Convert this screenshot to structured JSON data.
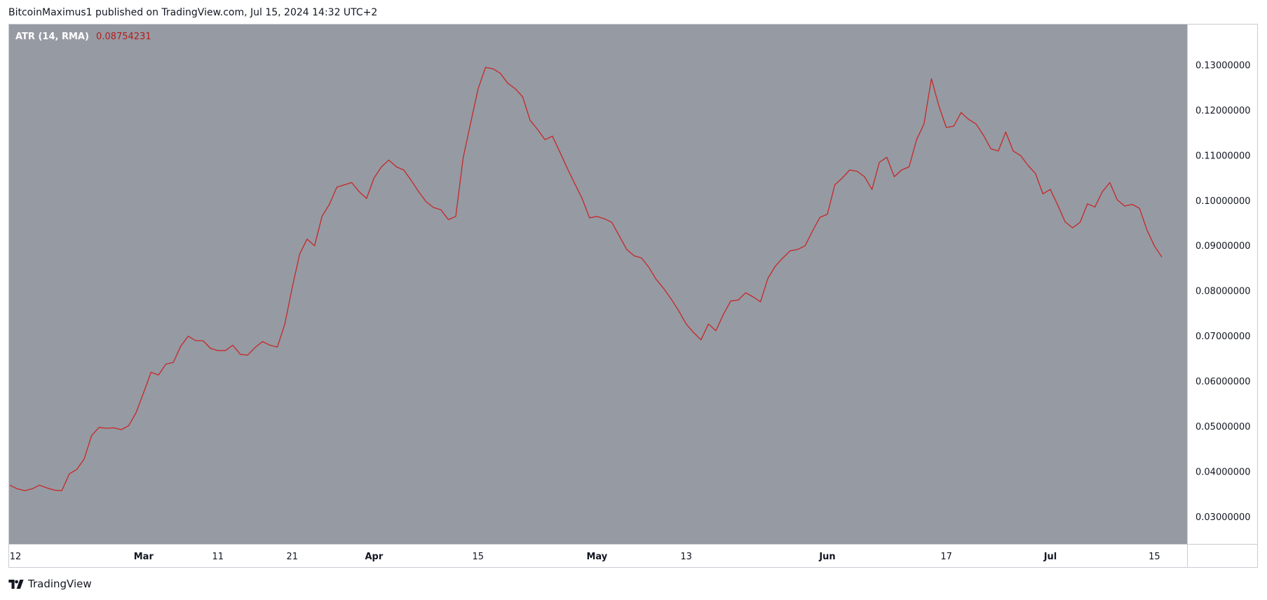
{
  "header": {
    "text": "BitcoinMaximus1 published on TradingView.com, Jul 15, 2024 14:32 UTC+2"
  },
  "legend": {
    "indicator": "ATR (14, RMA)",
    "value": "0.08754231"
  },
  "footer": {
    "brand": "TradingView",
    "logo_icon": "tradingview-logo-icon"
  },
  "colors": {
    "plot_bg": "#969aa3",
    "line": "#c62828",
    "value_text": "#b21d1d"
  },
  "chart_data": {
    "type": "line",
    "title": "",
    "xlabel": "",
    "ylabel": "",
    "ylim": [
      0.024,
      0.139
    ],
    "grid": false,
    "y_ticks": [
      "0.13000000",
      "0.12000000",
      "0.11000000",
      "0.10000000",
      "0.09000000",
      "0.08000000",
      "0.07000000",
      "0.06000000",
      "0.05000000",
      "0.04000000",
      "0.03000000"
    ],
    "x_ticks": [
      {
        "label": "12",
        "index": 0,
        "month": false
      },
      {
        "label": "Mar",
        "index": 18,
        "month": true
      },
      {
        "label": "11",
        "index": 28,
        "month": false
      },
      {
        "label": "21",
        "index": 38,
        "month": false
      },
      {
        "label": "Apr",
        "index": 49,
        "month": true
      },
      {
        "label": "15",
        "index": 63,
        "month": false
      },
      {
        "label": "May",
        "index": 79,
        "month": true
      },
      {
        "label": "13",
        "index": 91,
        "month": false
      },
      {
        "label": "Jun",
        "index": 110,
        "month": true
      },
      {
        "label": "17",
        "index": 126,
        "month": false
      },
      {
        "label": "Jul",
        "index": 140,
        "month": true
      },
      {
        "label": "15",
        "index": 154,
        "month": false
      }
    ],
    "series": [
      {
        "values": [
          0.037,
          0.0362,
          0.0358,
          0.0362,
          0.037,
          0.0364,
          0.0359,
          0.0358,
          0.0395,
          0.0405,
          0.0428,
          0.048,
          0.0498,
          0.0496,
          0.0497,
          0.0493,
          0.0502,
          0.0531,
          0.0575,
          0.062,
          0.0614,
          0.0638,
          0.0642,
          0.0678,
          0.07,
          0.069,
          0.069,
          0.0673,
          0.0668,
          0.0668,
          0.068,
          0.066,
          0.0658,
          0.0675,
          0.0688,
          0.068,
          0.0676,
          0.0727,
          0.0808,
          0.0882,
          0.0915,
          0.09,
          0.0965,
          0.0992,
          0.103,
          0.1035,
          0.104,
          0.102,
          0.1005,
          0.105,
          0.1075,
          0.109,
          0.1075,
          0.1068,
          0.1045,
          0.102,
          0.0998,
          0.0985,
          0.098,
          0.0958,
          0.0965,
          0.1095,
          0.1172,
          0.1247,
          0.1295,
          0.1292,
          0.1282,
          0.126,
          0.1248,
          0.123,
          0.1178,
          0.1158,
          0.1135,
          0.1143,
          0.1108,
          0.1072,
          0.1038,
          0.1005,
          0.0962,
          0.0965,
          0.096,
          0.0952,
          0.0922,
          0.0892,
          0.0878,
          0.0873,
          0.0852,
          0.0825,
          0.0805,
          0.0782,
          0.0756,
          0.0727,
          0.0708,
          0.0692,
          0.0727,
          0.0712,
          0.0748,
          0.0778,
          0.078,
          0.0796,
          0.0787,
          0.0776,
          0.0828,
          0.0855,
          0.0873,
          0.0889,
          0.0892,
          0.09,
          0.0933,
          0.0963,
          0.097,
          0.1035,
          0.105,
          0.1068,
          0.1065,
          0.1053,
          0.1025,
          0.1085,
          0.1096,
          0.1053,
          0.1068,
          0.1075,
          0.1135,
          0.117,
          0.127,
          0.121,
          0.1162,
          0.1165,
          0.1195,
          0.118,
          0.117,
          0.1145,
          0.1115,
          0.111,
          0.1152,
          0.111,
          0.11,
          0.1078,
          0.106,
          0.1015,
          0.1025,
          0.099,
          0.0953,
          0.094,
          0.0952,
          0.0993,
          0.0986,
          0.102,
          0.104,
          0.1002,
          0.0988,
          0.0992,
          0.0983,
          0.0935,
          0.09,
          0.0875
        ]
      }
    ]
  }
}
